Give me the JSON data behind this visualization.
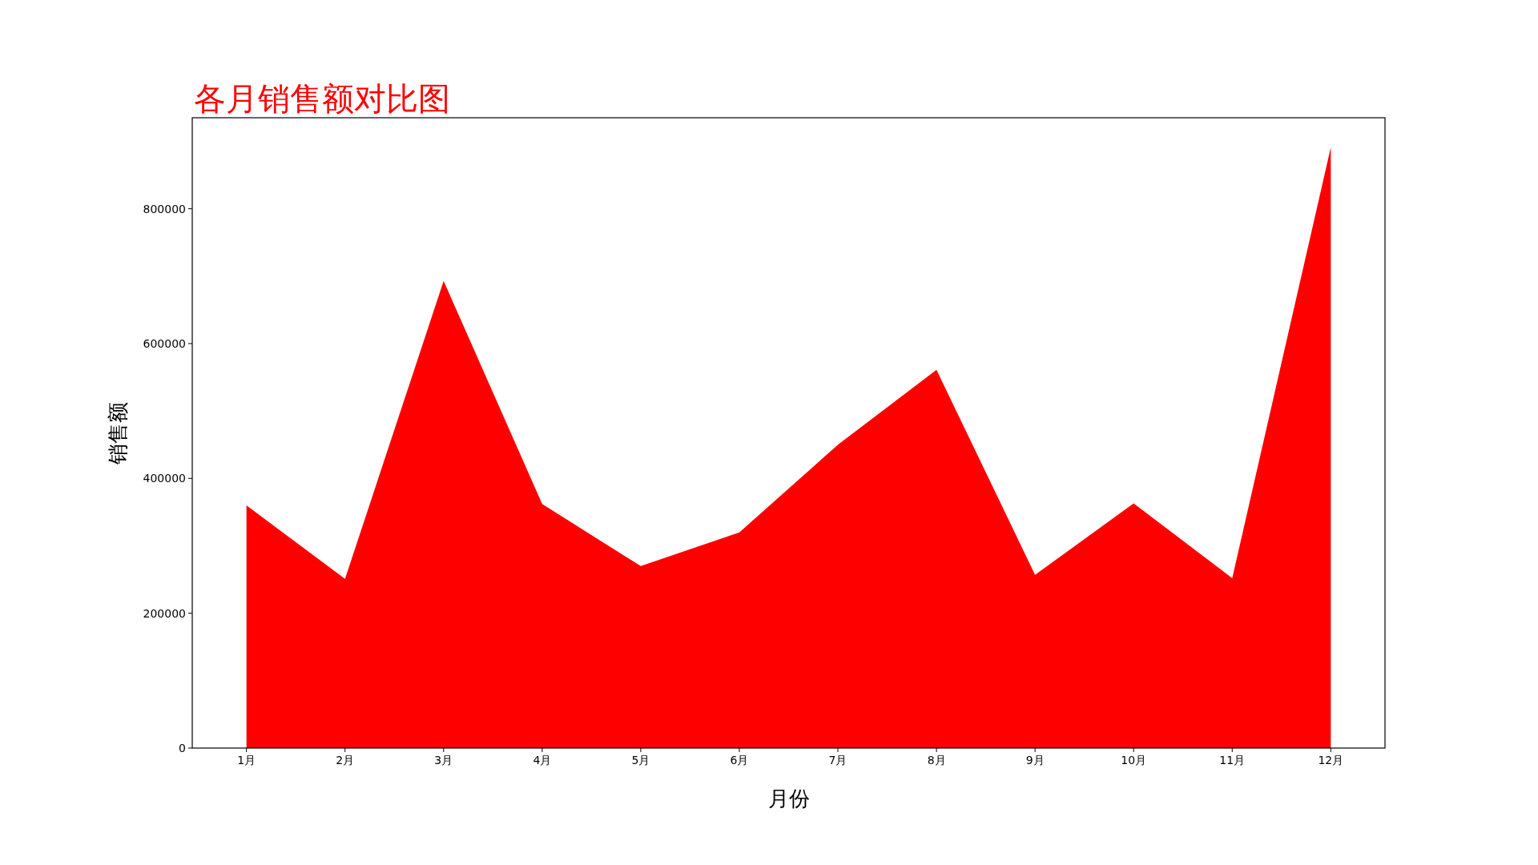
{
  "chart_data": {
    "type": "area",
    "title": "各月销售额对比图",
    "xlabel": "月份",
    "ylabel": "销售额",
    "categories": [
      "1月",
      "2月",
      "3月",
      "4月",
      "5月",
      "6月",
      "7月",
      "8月",
      "9月",
      "10月",
      "11月",
      "12月"
    ],
    "series": [
      {
        "color": "#ff0000",
        "values": [
          360000,
          251000,
          693000,
          362000,
          270000,
          320000,
          450000,
          561000,
          257000,
          363000,
          252000,
          891000
        ]
      }
    ],
    "ylim": [
      0,
      935000
    ],
    "yticks": [
      0,
      200000,
      400000,
      600000,
      800000
    ]
  }
}
